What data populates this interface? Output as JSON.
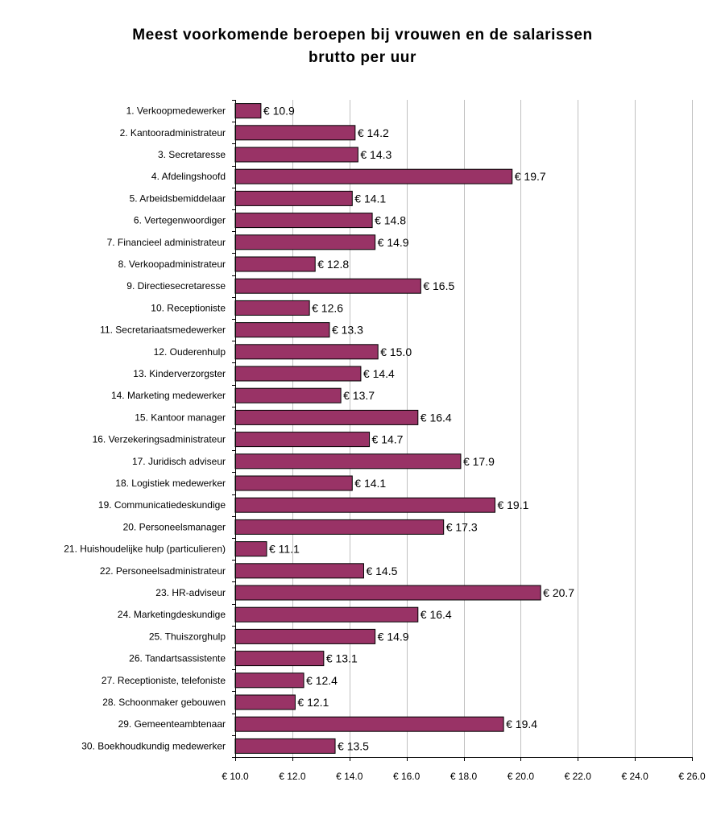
{
  "chart_data": {
    "type": "bar",
    "orientation": "horizontal",
    "title": "Meest voorkomende beroepen bij vrouwen en de salarissen brutto per uur",
    "title_lines": [
      "Meest voorkomende beroepen bij vrouwen en de salarissen",
      "brutto per uur"
    ],
    "xlabel": "",
    "ylabel": "",
    "xlim": [
      10.0,
      26.0
    ],
    "x_ticks": [
      10.0,
      12.0,
      14.0,
      16.0,
      18.0,
      20.0,
      22.0,
      24.0,
      26.0
    ],
    "x_tick_labels": [
      "€ 10.0",
      "€ 12.0",
      "€ 14.0",
      "€ 16.0",
      "€ 18.0",
      "€ 20.0",
      "€ 22.0",
      "€ 24.0",
      "€ 26.0"
    ],
    "grid": true,
    "legend": false,
    "bar_color": "#993366",
    "categories": [
      "1. Verkoopmedewerker",
      "2. Kantooradministrateur",
      "3. Secretaresse",
      "4. Afdelingshoofd",
      "5. Arbeidsbemiddelaar",
      "6. Vertegenwoordiger",
      "7. Financieel administrateur",
      "8. Verkoopadministrateur",
      "9. Directiesecretaresse",
      "10. Receptioniste",
      "11. Secretariaatsmedewerker",
      "12. Ouderenhulp",
      "13. Kinderverzorgster",
      "14. Marketing medewerker",
      "15. Kantoor manager",
      "16. Verzekeringsadministrateur",
      "17. Juridisch adviseur",
      "18. Logistiek medewerker",
      "19. Communicatiedeskundige",
      "20. Personeelsmanager",
      "21. Huishoudelijke hulp (particulieren)",
      "22. Personeelsadministrateur",
      "23. HR-adviseur",
      "24. Marketingdeskundige",
      "25. Thuiszorghulp",
      "26. Tandartsassistente",
      "27. Receptioniste, telefoniste",
      "28. Schoonmaker gebouwen",
      "29. Gemeenteambtenaar",
      "30. Boekhoudkundig medewerker"
    ],
    "values": [
      10.9,
      14.2,
      14.3,
      19.7,
      14.1,
      14.8,
      14.9,
      12.8,
      16.5,
      12.6,
      13.3,
      15.0,
      14.4,
      13.7,
      16.4,
      14.7,
      17.9,
      14.1,
      19.1,
      17.3,
      11.1,
      14.5,
      20.7,
      16.4,
      14.9,
      13.1,
      12.4,
      12.1,
      19.4,
      13.5
    ],
    "value_labels": [
      "€ 10.9",
      "€ 14.2",
      "€ 14.3",
      "€ 19.7",
      "€ 14.1",
      "€ 14.8",
      "€ 14.9",
      "€ 12.8",
      "€ 16.5",
      "€ 12.6",
      "€ 13.3",
      "€ 15.0",
      "€ 14.4",
      "€ 13.7",
      "€ 16.4",
      "€ 14.7",
      "€ 17.9",
      "€ 14.1",
      "€ 19.1",
      "€ 17.3",
      "€ 11.1",
      "€ 14.5",
      "€ 20.7",
      "€ 16.4",
      "€ 14.9",
      "€ 13.1",
      "€ 12.4",
      "€ 12.1",
      "€ 19.4",
      "€ 13.5"
    ]
  }
}
